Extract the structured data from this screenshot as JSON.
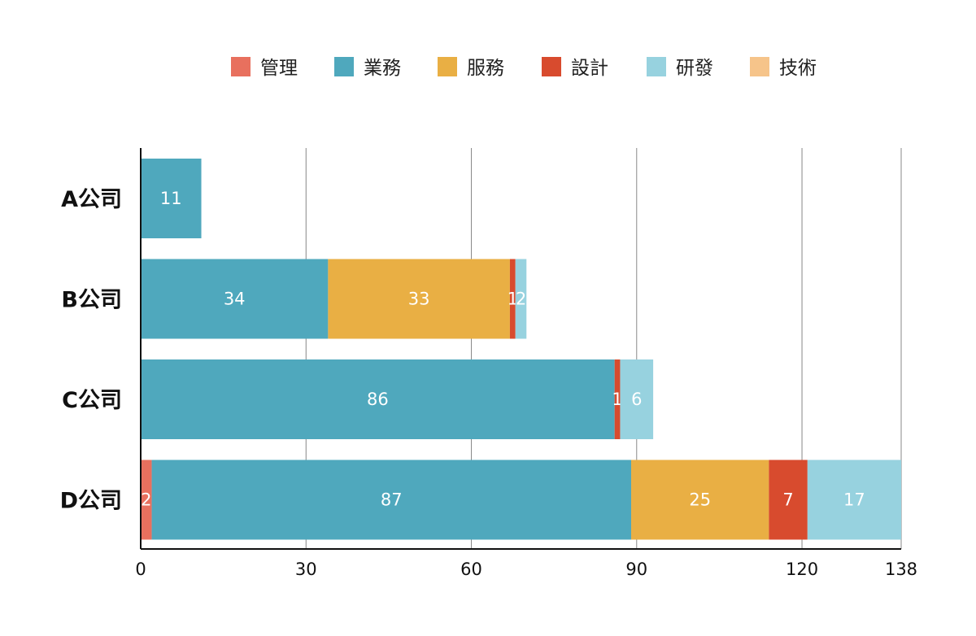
{
  "chart_data": {
    "type": "bar",
    "orientation": "horizontal",
    "stacked": true,
    "categories": [
      "A公司",
      "B公司",
      "C公司",
      "D公司"
    ],
    "series": [
      {
        "name": "管理",
        "color": "#E8705E",
        "values": [
          0,
          0,
          0,
          2
        ]
      },
      {
        "name": "業務",
        "color": "#4FA8BD",
        "values": [
          11,
          34,
          86,
          87
        ]
      },
      {
        "name": "服務",
        "color": "#E9AF44",
        "values": [
          0,
          33,
          0,
          25
        ]
      },
      {
        "name": "設計",
        "color": "#D84B2E",
        "values": [
          0,
          1,
          1,
          7
        ]
      },
      {
        "name": "研發",
        "color": "#97D2DF",
        "values": [
          0,
          2,
          6,
          17
        ]
      },
      {
        "name": "技術",
        "color": "#F6C48A",
        "values": [
          0,
          0,
          0,
          0
        ]
      }
    ],
    "xticks": [
      0,
      30,
      60,
      90,
      120,
      138
    ],
    "xlim": [
      0,
      138
    ],
    "grid": true,
    "legend_position": "top"
  }
}
